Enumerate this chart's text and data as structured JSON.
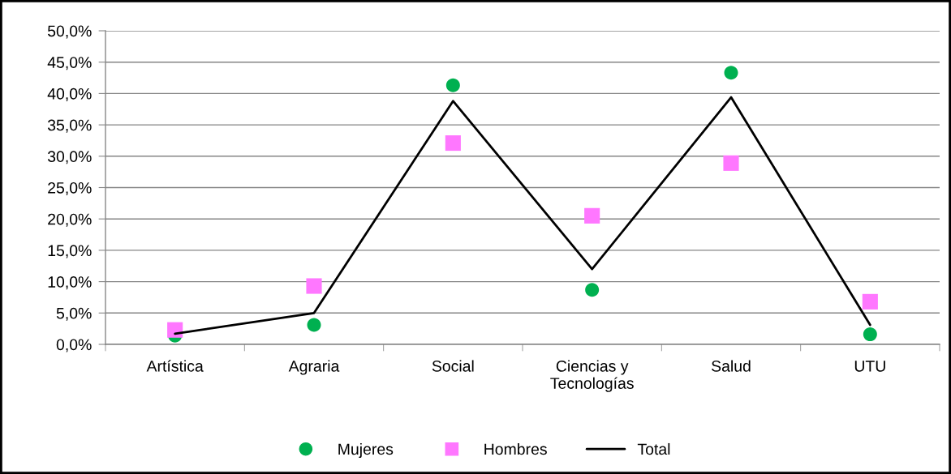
{
  "chart_data": {
    "type": "line",
    "categories": [
      "Artística",
      "Agraria",
      "Social",
      "Ciencias y\nTecnologías",
      "Salud",
      "UTU"
    ],
    "series": [
      {
        "name": "Mujeres",
        "type": "scatter",
        "marker": "circle",
        "color": "#00b050",
        "values": [
          1.4,
          3.1,
          41.3,
          8.7,
          43.3,
          1.6
        ]
      },
      {
        "name": "Hombres",
        "type": "scatter",
        "marker": "square",
        "color": "#ff77ff",
        "values": [
          2.3,
          9.3,
          32.1,
          20.5,
          28.9,
          6.8
        ]
      },
      {
        "name": "Total",
        "color": "#000000",
        "values": [
          1.7,
          5.0,
          38.8,
          12.0,
          39.4,
          3.1
        ]
      }
    ],
    "ylim": [
      0,
      50
    ],
    "yticks": [
      {
        "value": 0,
        "label": "0,0%"
      },
      {
        "value": 5,
        "label": "5,0%"
      },
      {
        "value": 10,
        "label": "10,0%"
      },
      {
        "value": 15,
        "label": "15,0%"
      },
      {
        "value": 20,
        "label": "20,0%"
      },
      {
        "value": 25,
        "label": "25,0%"
      },
      {
        "value": 30,
        "label": "30,0%"
      },
      {
        "value": 35,
        "label": "35,0%"
      },
      {
        "value": 40,
        "label": "40,0%"
      },
      {
        "value": 45,
        "label": "45,0%"
      },
      {
        "value": 50,
        "label": "50,0%"
      }
    ],
    "grid": "y",
    "legend": "bottom"
  }
}
